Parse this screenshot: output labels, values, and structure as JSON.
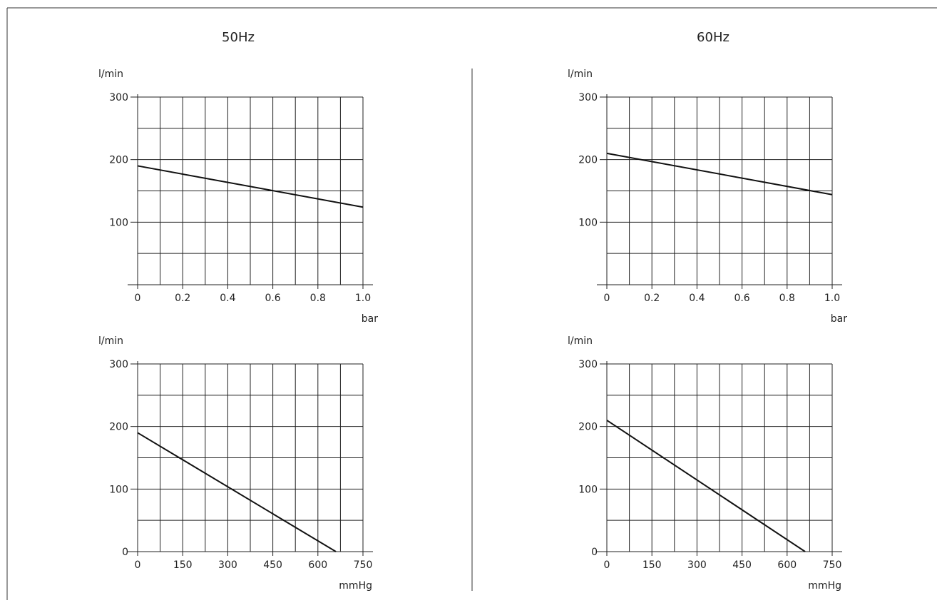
{
  "chart_data": [
    {
      "type": "line",
      "panel": "50Hz pressure",
      "title": "50Hz",
      "ylabel": "l/min",
      "xlabel": "bar",
      "xlim": [
        0,
        1.0
      ],
      "ylim": [
        0,
        300
      ],
      "x_ticks": [
        0,
        0.2,
        0.4,
        0.6,
        0.8,
        1.0
      ],
      "x_tick_labels": [
        "0",
        "0.2",
        "0.4",
        "0.6",
        "0.8",
        "1.0"
      ],
      "x_grid_step": 0.1,
      "y_ticks": [
        100,
        200,
        300
      ],
      "y_tick_labels": [
        "100",
        "200",
        "300"
      ],
      "y_grid_step": 50,
      "grid": true,
      "series": [
        {
          "x": [
            0,
            1.0
          ],
          "y": [
            190,
            124
          ]
        }
      ]
    },
    {
      "type": "line",
      "panel": "60Hz pressure",
      "title": "60Hz",
      "ylabel": "l/min",
      "xlabel": "bar",
      "xlim": [
        0,
        1.0
      ],
      "ylim": [
        0,
        300
      ],
      "x_ticks": [
        0,
        0.2,
        0.4,
        0.6,
        0.8,
        1.0
      ],
      "x_tick_labels": [
        "0",
        "0.2",
        "0.4",
        "0.6",
        "0.8",
        "1.0"
      ],
      "x_grid_step": 0.1,
      "y_ticks": [
        100,
        200,
        300
      ],
      "y_tick_labels": [
        "100",
        "200",
        "300"
      ],
      "y_grid_step": 50,
      "grid": true,
      "series": [
        {
          "x": [
            0,
            1.0
          ],
          "y": [
            210,
            144
          ]
        }
      ]
    },
    {
      "type": "line",
      "panel": "50Hz vacuum",
      "title": "",
      "ylabel": "l/min",
      "xlabel": "mmHg",
      "xlim": [
        0,
        750
      ],
      "ylim": [
        0,
        300
      ],
      "x_ticks": [
        0,
        150,
        300,
        450,
        600,
        750
      ],
      "x_tick_labels": [
        "0",
        "150",
        "300",
        "450",
        "600",
        "750"
      ],
      "x_grid_step": 75,
      "y_ticks": [
        0,
        100,
        200,
        300
      ],
      "y_tick_labels": [
        "0",
        "100",
        "200",
        "300"
      ],
      "y_grid_step": 50,
      "grid": true,
      "series": [
        {
          "x": [
            0,
            660
          ],
          "y": [
            190,
            0
          ]
        }
      ]
    },
    {
      "type": "line",
      "panel": "60Hz vacuum",
      "title": "",
      "ylabel": "l/min",
      "xlabel": "mmHg",
      "xlim": [
        0,
        750
      ],
      "ylim": [
        0,
        300
      ],
      "x_ticks": [
        0,
        150,
        300,
        450,
        600,
        750
      ],
      "x_tick_labels": [
        "0",
        "150",
        "300",
        "450",
        "600",
        "750"
      ],
      "x_grid_step": 75,
      "y_ticks": [
        0,
        100,
        200,
        300
      ],
      "y_tick_labels": [
        "0",
        "100",
        "200",
        "300"
      ],
      "y_grid_step": 50,
      "grid": true,
      "series": [
        {
          "x": [
            0,
            660
          ],
          "y": [
            210,
            0
          ]
        }
      ]
    }
  ]
}
